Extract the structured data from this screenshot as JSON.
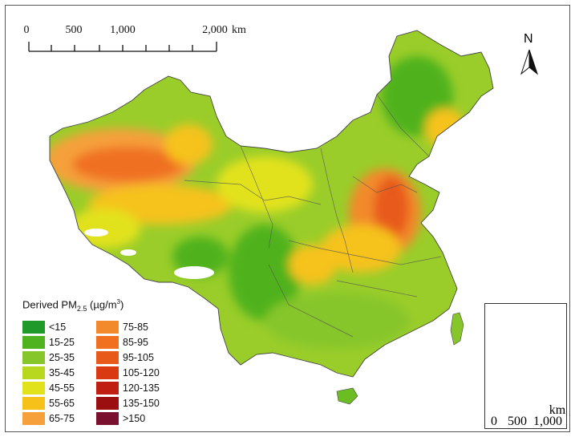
{
  "legend": {
    "title_main": "Derived PM",
    "title_sub": "2.5",
    "title_unit_pre": " (µg/m",
    "title_unit_sup": "3",
    "title_unit_post": ")",
    "items": [
      {
        "label": "<15",
        "color": "#1f9a2a"
      },
      {
        "label": "15-25",
        "color": "#4fb21f"
      },
      {
        "label": "25-35",
        "color": "#86c62a"
      },
      {
        "label": "35-45",
        "color": "#b7d81e"
      },
      {
        "label": "45-55",
        "color": "#e2e21a"
      },
      {
        "label": "55-65",
        "color": "#f6c21a"
      },
      {
        "label": "65-75",
        "color": "#f5a03a"
      },
      {
        "label": "75-85",
        "color": "#f28a2c"
      },
      {
        "label": "85-95",
        "color": "#f07020"
      },
      {
        "label": "95-105",
        "color": "#e85a1a"
      },
      {
        "label": "105-120",
        "color": "#da3a12"
      },
      {
        "label": "120-135",
        "color": "#c01e10"
      },
      {
        "label": "135-150",
        "color": "#9c0f10"
      },
      {
        "label": ">150",
        "color": "#7a1030"
      }
    ]
  },
  "scale_bar": {
    "labels": [
      "0",
      "500",
      "1,000",
      "2,000"
    ],
    "unit": "km"
  },
  "north_arrow": {
    "label": "N"
  },
  "inset": {
    "scale_labels": [
      "0",
      "500",
      "1,000"
    ],
    "unit": "km"
  }
}
